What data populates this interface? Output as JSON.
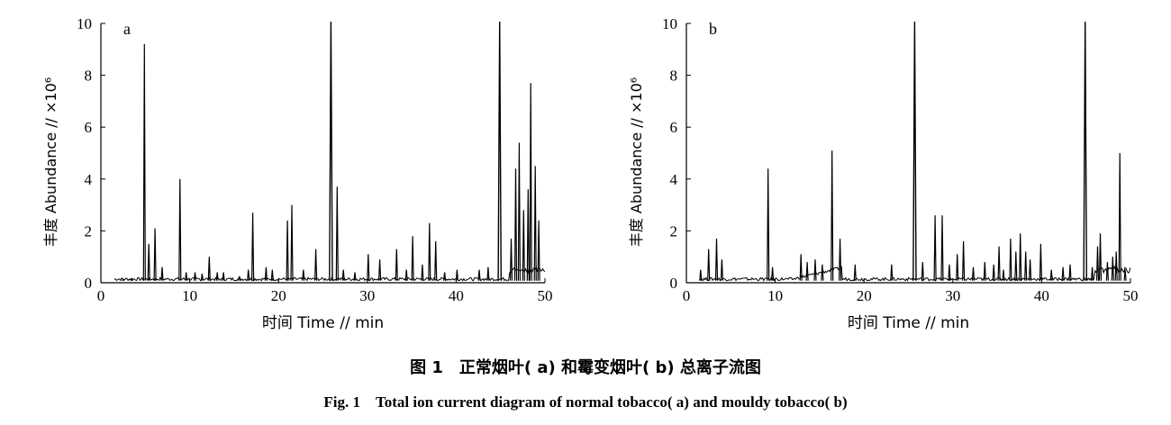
{
  "caption": {
    "cn": "图 1　正常烟叶( a) 和霉变烟叶( b) 总离子流图",
    "en": "Fig. 1　Total ion current diagram of normal tobacco( a) and mouldy tobacco( b)"
  },
  "chart_data": [
    {
      "type": "line",
      "panel_label": "a",
      "xlabel": "时间 Time // min",
      "ylabel": "丰度 Abundance // ×10⁶",
      "xlim": [
        0,
        50
      ],
      "ylim": [
        0,
        10
      ],
      "xticks": [
        "0",
        "10",
        "20",
        "30",
        "40",
        "50"
      ],
      "yticks": [
        "0",
        "2",
        "4",
        "6",
        "8",
        "10"
      ],
      "grid": false,
      "baseline": 0.08,
      "peaks": [
        {
          "x": 2.5,
          "y": 0.12
        },
        {
          "x": 3.5,
          "y": 0.15
        },
        {
          "x": 4.9,
          "y": 9.2
        },
        {
          "x": 5.4,
          "y": 1.5
        },
        {
          "x": 6.1,
          "y": 2.1
        },
        {
          "x": 6.9,
          "y": 0.6
        },
        {
          "x": 8.9,
          "y": 4.0
        },
        {
          "x": 9.6,
          "y": 0.4
        },
        {
          "x": 10.6,
          "y": 0.4
        },
        {
          "x": 11.4,
          "y": 0.35
        },
        {
          "x": 12.2,
          "y": 1.0
        },
        {
          "x": 13.1,
          "y": 0.4
        },
        {
          "x": 13.8,
          "y": 0.4
        },
        {
          "x": 15.6,
          "y": 0.25
        },
        {
          "x": 16.6,
          "y": 0.5
        },
        {
          "x": 17.1,
          "y": 2.7
        },
        {
          "x": 18.6,
          "y": 0.6
        },
        {
          "x": 19.3,
          "y": 0.5
        },
        {
          "x": 21.0,
          "y": 2.4
        },
        {
          "x": 21.5,
          "y": 3.0
        },
        {
          "x": 22.8,
          "y": 0.5
        },
        {
          "x": 24.2,
          "y": 1.3
        },
        {
          "x": 25.9,
          "y": 10.0
        },
        {
          "x": 26.6,
          "y": 3.7
        },
        {
          "x": 27.3,
          "y": 0.5
        },
        {
          "x": 28.6,
          "y": 0.4
        },
        {
          "x": 30.1,
          "y": 1.1
        },
        {
          "x": 31.4,
          "y": 0.9
        },
        {
          "x": 33.3,
          "y": 1.3
        },
        {
          "x": 34.4,
          "y": 0.5
        },
        {
          "x": 35.1,
          "y": 1.8
        },
        {
          "x": 36.2,
          "y": 0.7
        },
        {
          "x": 37.0,
          "y": 2.3
        },
        {
          "x": 37.7,
          "y": 1.6
        },
        {
          "x": 38.7,
          "y": 0.4
        },
        {
          "x": 40.1,
          "y": 0.5
        },
        {
          "x": 42.6,
          "y": 0.5
        },
        {
          "x": 43.6,
          "y": 0.6
        },
        {
          "x": 44.9,
          "y": 10.0
        },
        {
          "x": 46.2,
          "y": 1.7
        },
        {
          "x": 46.7,
          "y": 4.4
        },
        {
          "x": 47.1,
          "y": 5.4
        },
        {
          "x": 47.6,
          "y": 2.8
        },
        {
          "x": 48.1,
          "y": 3.6
        },
        {
          "x": 48.4,
          "y": 7.7
        },
        {
          "x": 48.9,
          "y": 4.5
        },
        {
          "x": 49.3,
          "y": 2.4
        }
      ]
    },
    {
      "type": "line",
      "panel_label": "b",
      "xlabel": "时间 Time // min",
      "ylabel": "丰度 Abundance // ×10⁶",
      "xlim": [
        0,
        50
      ],
      "ylim": [
        0,
        10
      ],
      "xticks": [
        "0",
        "10",
        "20",
        "30",
        "40",
        "50"
      ],
      "yticks": [
        "0",
        "2",
        "4",
        "6",
        "8",
        "10"
      ],
      "grid": false,
      "baseline": 0.08,
      "peaks": [
        {
          "x": 1.6,
          "y": 0.5
        },
        {
          "x": 2.5,
          "y": 1.3
        },
        {
          "x": 3.4,
          "y": 1.7
        },
        {
          "x": 4.0,
          "y": 0.9
        },
        {
          "x": 9.2,
          "y": 4.4
        },
        {
          "x": 9.7,
          "y": 0.6
        },
        {
          "x": 12.9,
          "y": 1.1
        },
        {
          "x": 13.6,
          "y": 0.8
        },
        {
          "x": 14.5,
          "y": 0.9
        },
        {
          "x": 15.3,
          "y": 0.7
        },
        {
          "x": 16.4,
          "y": 5.1
        },
        {
          "x": 17.3,
          "y": 1.7
        },
        {
          "x": 19.0,
          "y": 0.7
        },
        {
          "x": 23.1,
          "y": 0.7
        },
        {
          "x": 25.7,
          "y": 10.0
        },
        {
          "x": 26.6,
          "y": 0.8
        },
        {
          "x": 28.0,
          "y": 2.6
        },
        {
          "x": 28.8,
          "y": 2.6
        },
        {
          "x": 29.6,
          "y": 0.7
        },
        {
          "x": 30.5,
          "y": 1.1
        },
        {
          "x": 31.2,
          "y": 1.6
        },
        {
          "x": 32.3,
          "y": 0.6
        },
        {
          "x": 33.6,
          "y": 0.8
        },
        {
          "x": 34.6,
          "y": 0.7
        },
        {
          "x": 35.2,
          "y": 1.4
        },
        {
          "x": 35.7,
          "y": 0.5
        },
        {
          "x": 36.5,
          "y": 1.7
        },
        {
          "x": 37.1,
          "y": 1.2
        },
        {
          "x": 37.6,
          "y": 1.9
        },
        {
          "x": 38.2,
          "y": 1.2
        },
        {
          "x": 38.7,
          "y": 0.9
        },
        {
          "x": 39.9,
          "y": 1.5
        },
        {
          "x": 41.1,
          "y": 0.5
        },
        {
          "x": 42.4,
          "y": 0.6
        },
        {
          "x": 43.2,
          "y": 0.7
        },
        {
          "x": 44.9,
          "y": 10.0
        },
        {
          "x": 45.7,
          "y": 0.6
        },
        {
          "x": 46.3,
          "y": 1.4
        },
        {
          "x": 46.6,
          "y": 1.9
        },
        {
          "x": 47.4,
          "y": 0.8
        },
        {
          "x": 48.0,
          "y": 1.0
        },
        {
          "x": 48.4,
          "y": 1.2
        },
        {
          "x": 48.8,
          "y": 5.0
        },
        {
          "x": 49.4,
          "y": 0.5
        }
      ]
    }
  ]
}
